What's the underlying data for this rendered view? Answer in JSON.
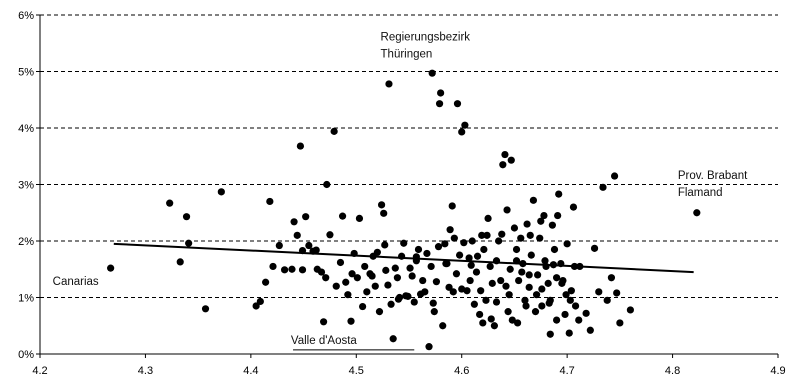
{
  "chart_data": {
    "type": "scatter",
    "title": "",
    "xlabel": "",
    "ylabel": "",
    "xlim": [
      4.2,
      4.9
    ],
    "ylim": [
      0,
      6
    ],
    "x_ticks": [
      "4.2",
      "4.3",
      "4.4",
      "4.5",
      "4.6",
      "4.7",
      "4.8",
      "4.9"
    ],
    "y_ticks": [
      "0%",
      "1%",
      "2%",
      "3%",
      "4%",
      "5%",
      "6%"
    ],
    "y_unit": "%",
    "grid": "horizontal dashed",
    "colors": {
      "points": "#000000",
      "grid": "#000000",
      "trend": "#000000"
    },
    "trend_line": {
      "x": [
        4.27,
        4.82
      ],
      "y": [
        1.95,
        1.45
      ]
    },
    "annotations": [
      {
        "lines": [
          "Regierungsbezirk",
          "Thüringen"
        ],
        "x": 4.523,
        "y": 5.55
      },
      {
        "lines": [
          "Prov. Brabant",
          "Flamand"
        ],
        "x": 4.805,
        "y": 3.1
      },
      {
        "lines": [
          "Canarias"
        ],
        "x": 4.212,
        "y": 1.22
      },
      {
        "lines": [
          "Valle d'Aosta"
        ],
        "x": 4.438,
        "y": 0.18,
        "underline": [
          4.44,
          4.555
        ]
      }
    ],
    "points": [
      [
        4.267,
        1.52
      ],
      [
        4.323,
        2.67
      ],
      [
        4.333,
        1.63
      ],
      [
        4.339,
        2.43
      ],
      [
        4.341,
        1.96
      ],
      [
        4.357,
        0.8
      ],
      [
        4.372,
        2.87
      ],
      [
        4.405,
        0.85
      ],
      [
        4.409,
        0.93
      ],
      [
        4.414,
        1.27
      ],
      [
        4.418,
        2.7
      ],
      [
        4.421,
        1.55
      ],
      [
        4.427,
        1.92
      ],
      [
        4.432,
        1.49
      ],
      [
        4.439,
        1.5
      ],
      [
        4.441,
        2.34
      ],
      [
        4.444,
        2.1
      ],
      [
        4.447,
        3.68
      ],
      [
        4.449,
        1.83
      ],
      [
        4.452,
        2.43
      ],
      [
        4.455,
        1.92
      ],
      [
        4.459,
        1.82
      ],
      [
        4.463,
        1.5
      ],
      [
        4.467,
        1.45
      ],
      [
        4.469,
        0.57
      ],
      [
        4.471,
        1.35
      ],
      [
        4.472,
        3.0
      ],
      [
        4.475,
        2.11
      ],
      [
        4.479,
        3.94
      ],
      [
        4.481,
        1.2
      ],
      [
        4.485,
        1.62
      ],
      [
        4.487,
        2.44
      ],
      [
        4.49,
        1.27
      ],
      [
        4.492,
        1.05
      ],
      [
        4.495,
        0.58
      ],
      [
        4.496,
        1.42
      ],
      [
        4.498,
        1.78
      ],
      [
        4.501,
        1.35
      ],
      [
        4.503,
        2.4
      ],
      [
        4.506,
        0.84
      ],
      [
        4.508,
        1.55
      ],
      [
        4.51,
        1.1
      ],
      [
        4.513,
        1.42
      ],
      [
        4.516,
        1.73
      ],
      [
        4.518,
        1.2
      ],
      [
        4.52,
        1.8
      ],
      [
        4.522,
        0.75
      ],
      [
        4.524,
        2.64
      ],
      [
        4.526,
        2.49
      ],
      [
        4.528,
        1.48
      ],
      [
        4.53,
        1.22
      ],
      [
        4.531,
        4.78
      ],
      [
        4.533,
        0.88
      ],
      [
        4.535,
        0.27
      ],
      [
        4.537,
        1.52
      ],
      [
        4.539,
        1.35
      ],
      [
        4.541,
        1.0
      ],
      [
        4.543,
        1.73
      ],
      [
        4.545,
        1.96
      ],
      [
        4.547,
        1.03
      ],
      [
        4.549,
        1.02
      ],
      [
        4.551,
        1.52
      ],
      [
        4.553,
        1.38
      ],
      [
        4.555,
        0.92
      ],
      [
        4.557,
        1.65
      ],
      [
        4.559,
        1.85
      ],
      [
        4.561,
        1.06
      ],
      [
        4.563,
        1.3
      ],
      [
        4.565,
        1.1
      ],
      [
        4.567,
        1.78
      ],
      [
        4.569,
        0.13
      ],
      [
        4.571,
        1.55
      ],
      [
        4.572,
        4.97
      ],
      [
        4.574,
        0.75
      ],
      [
        4.576,
        1.28
      ],
      [
        4.578,
        1.9
      ],
      [
        4.579,
        4.43
      ],
      [
        4.58,
        4.62
      ],
      [
        4.582,
        0.5
      ],
      [
        4.584,
        1.95
      ],
      [
        4.586,
        1.6
      ],
      [
        4.588,
        1.18
      ],
      [
        4.589,
        2.2
      ],
      [
        4.591,
        2.62
      ],
      [
        4.593,
        2.05
      ],
      [
        4.595,
        1.42
      ],
      [
        4.596,
        4.43
      ],
      [
        4.598,
        1.75
      ],
      [
        4.6,
        3.93
      ],
      [
        4.602,
        1.97
      ],
      [
        4.603,
        4.05
      ],
      [
        4.605,
        1.12
      ],
      [
        4.607,
        1.7
      ],
      [
        4.608,
        1.3
      ],
      [
        4.61,
        2.0
      ],
      [
        4.612,
        0.88
      ],
      [
        4.614,
        1.45
      ],
      [
        4.615,
        1.73
      ],
      [
        4.617,
        0.7
      ],
      [
        4.619,
        2.1
      ],
      [
        4.621,
        1.85
      ],
      [
        4.623,
        0.95
      ],
      [
        4.625,
        2.4
      ],
      [
        4.627,
        1.55
      ],
      [
        4.629,
        1.25
      ],
      [
        4.631,
        0.5
      ],
      [
        4.633,
        0.92
      ],
      [
        4.635,
        2.0
      ],
      [
        4.637,
        1.3
      ],
      [
        4.639,
        3.35
      ],
      [
        4.641,
        3.53
      ],
      [
        4.643,
        2.55
      ],
      [
        4.645,
        1.05
      ],
      [
        4.647,
        3.43
      ],
      [
        4.648,
        0.6
      ],
      [
        4.65,
        2.23
      ],
      [
        4.652,
        1.85
      ],
      [
        4.654,
        1.3
      ],
      [
        4.656,
        2.05
      ],
      [
        4.658,
        1.6
      ],
      [
        4.66,
        0.95
      ],
      [
        4.662,
        2.3
      ],
      [
        4.664,
        1.18
      ],
      [
        4.666,
        1.75
      ],
      [
        4.668,
        2.72
      ],
      [
        4.67,
        0.75
      ],
      [
        4.672,
        1.4
      ],
      [
        4.674,
        2.05
      ],
      [
        4.676,
        0.85
      ],
      [
        4.678,
        2.45
      ],
      [
        4.68,
        1.55
      ],
      [
        4.682,
        1.25
      ],
      [
        4.684,
        0.95
      ],
      [
        4.686,
        2.28
      ],
      [
        4.688,
        1.85
      ],
      [
        4.69,
        0.6
      ],
      [
        4.692,
        2.83
      ],
      [
        4.694,
        1.6
      ],
      [
        4.696,
        1.3
      ],
      [
        4.698,
        0.7
      ],
      [
        4.7,
        1.95
      ],
      [
        4.702,
        0.37
      ],
      [
        4.704,
        1.12
      ],
      [
        4.706,
        2.6
      ],
      [
        4.708,
        0.85
      ],
      [
        4.712,
        1.55
      ],
      [
        4.718,
        0.72
      ],
      [
        4.722,
        0.42
      ],
      [
        4.726,
        1.87
      ],
      [
        4.73,
        1.1
      ],
      [
        4.734,
        2.95
      ],
      [
        4.738,
        0.95
      ],
      [
        4.742,
        1.35
      ],
      [
        4.745,
        3.15
      ],
      [
        4.747,
        1.08
      ],
      [
        4.75,
        0.55
      ],
      [
        4.76,
        0.78
      ],
      [
        4.823,
        2.5
      ],
      [
        4.449,
        1.49
      ],
      [
        4.462,
        1.84
      ],
      [
        4.515,
        1.38
      ],
      [
        4.527,
        1.93
      ],
      [
        4.54,
        0.97
      ],
      [
        4.557,
        1.72
      ],
      [
        4.573,
        0.9
      ],
      [
        4.585,
        1.6
      ],
      [
        4.592,
        1.1
      ],
      [
        4.6,
        1.15
      ],
      [
        4.609,
        1.57
      ],
      [
        4.618,
        1.12
      ],
      [
        4.624,
        2.1
      ],
      [
        4.633,
        1.65
      ],
      [
        4.638,
        2.12
      ],
      [
        4.642,
        1.2
      ],
      [
        4.644,
        0.75
      ],
      [
        4.652,
        1.65
      ],
      [
        4.657,
        1.45
      ],
      [
        4.661,
        0.85
      ],
      [
        4.665,
        2.1
      ],
      [
        4.671,
        1.05
      ],
      [
        4.675,
        2.35
      ],
      [
        4.679,
        1.65
      ],
      [
        4.683,
        0.9
      ],
      [
        4.687,
        1.58
      ],
      [
        4.691,
        2.45
      ],
      [
        4.695,
        1.25
      ],
      [
        4.699,
        1.05
      ],
      [
        4.703,
        0.95
      ],
      [
        4.707,
        1.55
      ],
      [
        4.711,
        0.6
      ],
      [
        4.62,
        0.55
      ],
      [
        4.628,
        0.62
      ],
      [
        4.646,
        1.5
      ],
      [
        4.653,
        0.55
      ],
      [
        4.664,
        1.4
      ],
      [
        4.676,
        1.15
      ],
      [
        4.684,
        0.35
      ],
      [
        4.69,
        1.35
      ]
    ]
  }
}
